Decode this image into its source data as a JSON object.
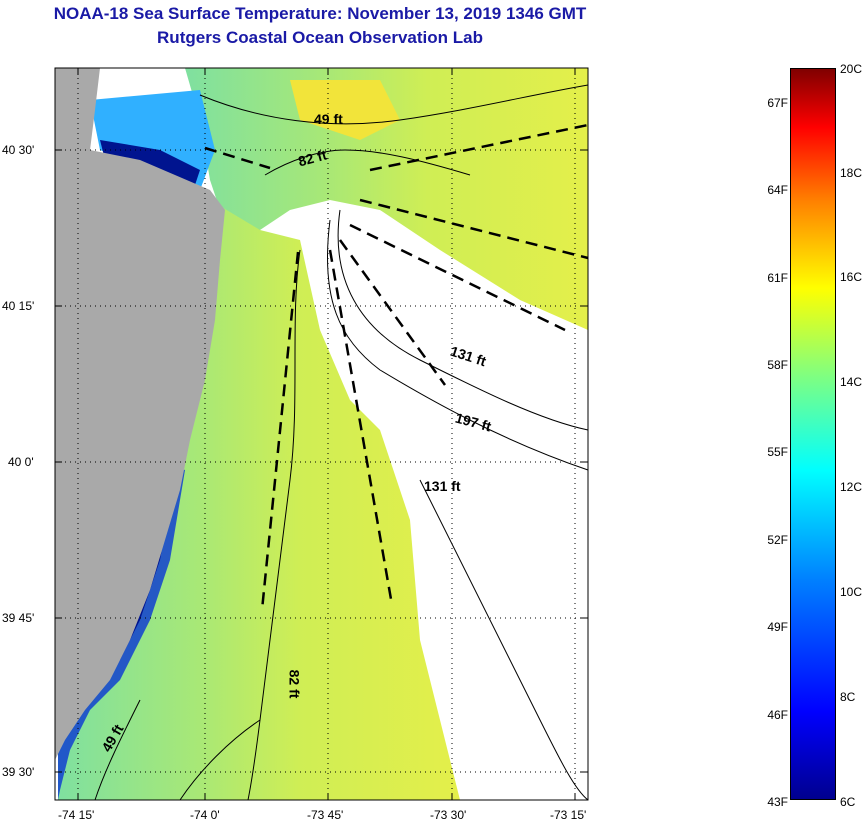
{
  "title": "NOAA-18 Sea Surface Temperature:  November 13, 2019 1346 GMT",
  "subtitle": "Rutgers Coastal Ocean Observation Lab",
  "map": {
    "lat_ticks": [
      "40 30'",
      "40 15'",
      "40 0'",
      "39 45'",
      "39 30'"
    ],
    "lon_ticks": [
      "-74 15'",
      "-74 0'",
      "-73 45'",
      "-73 30'",
      "-73 15'"
    ],
    "depth_labels": [
      "49 ft",
      "82 ft",
      "131 ft",
      "197 ft",
      "131 ft",
      "82 ft",
      "49 ft"
    ],
    "colors": {
      "land": "#a9a9a9",
      "no_data": "#ffffff",
      "sst_warm": "#e8ee4a",
      "sst_mid": "#9be07a",
      "sst_cold": "#00148f",
      "contour": "#000000"
    }
  },
  "colorbar": {
    "fahrenheit": [
      "67F",
      "64F",
      "61F",
      "58F",
      "55F",
      "52F",
      "49F",
      "46F",
      "43F"
    ],
    "celsius": [
      "20C",
      "18C",
      "16C",
      "14C",
      "12C",
      "10C",
      "8C",
      "6C"
    ]
  }
}
